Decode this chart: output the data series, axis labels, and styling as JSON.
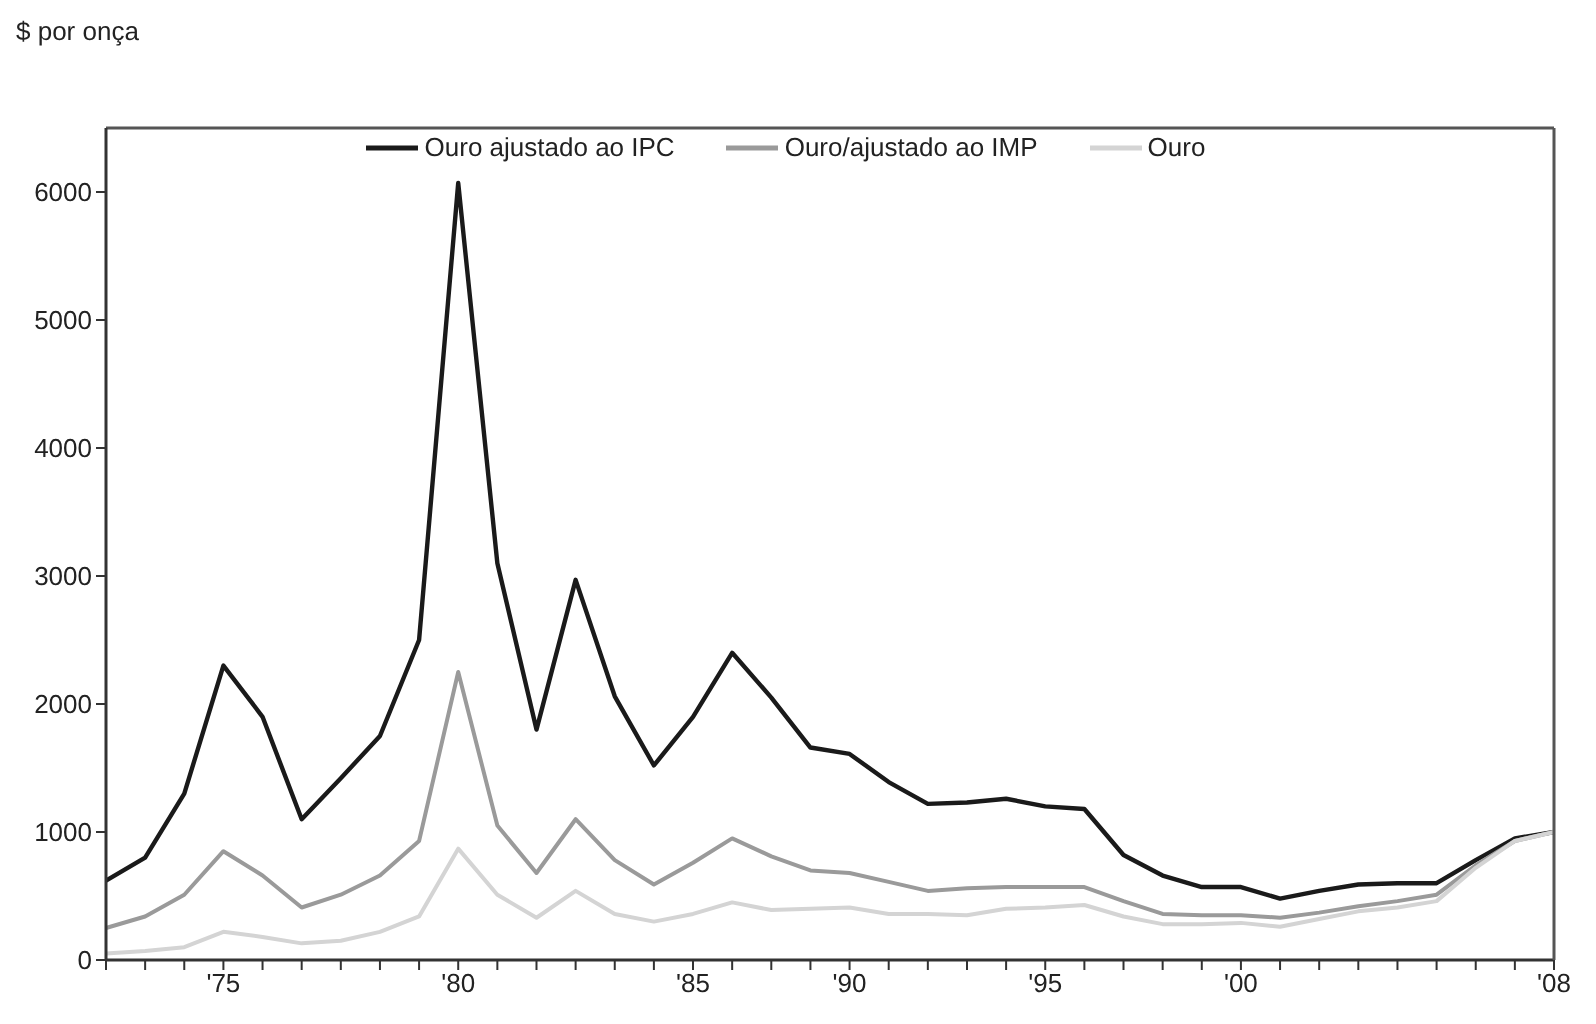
{
  "chart_data": {
    "type": "line",
    "ylabel": "$ por onça",
    "categories": [
      null,
      null,
      null,
      "'75",
      null,
      null,
      null,
      null,
      null,
      "'80",
      null,
      null,
      null,
      null,
      null,
      "'85",
      null,
      null,
      null,
      "'90",
      null,
      null,
      null,
      null,
      "'95",
      null,
      null,
      null,
      null,
      "'00",
      null,
      null,
      null,
      null,
      null,
      null,
      null,
      "'08"
    ],
    "series": [
      {
        "name": "Ouro ajustado ao IPC",
        "color": "#1a1a1a",
        "values": [
          620,
          800,
          1300,
          2300,
          1900,
          1100,
          1420,
          1750,
          2500,
          6070,
          3100,
          1800,
          2970,
          2060,
          1520,
          1900,
          2400,
          2050,
          1660,
          1610,
          1390,
          1220,
          1230,
          1260,
          1200,
          1180,
          820,
          660,
          570,
          570,
          480,
          540,
          590,
          600,
          600,
          780,
          950,
          1000
        ]
      },
      {
        "name": "Ouro/ajustado ao IMP",
        "color": "#9a9a9a",
        "values": [
          250,
          340,
          510,
          850,
          660,
          410,
          510,
          660,
          930,
          2250,
          1050,
          680,
          1100,
          780,
          590,
          760,
          950,
          810,
          700,
          680,
          610,
          540,
          560,
          570,
          570,
          570,
          460,
          360,
          350,
          350,
          330,
          370,
          420,
          460,
          510,
          740,
          930,
          1000
        ]
      },
      {
        "name": "Ouro",
        "color": "#d4d4d4",
        "values": [
          50,
          70,
          100,
          220,
          180,
          130,
          150,
          220,
          340,
          870,
          510,
          330,
          540,
          360,
          300,
          360,
          450,
          390,
          400,
          410,
          360,
          360,
          350,
          400,
          410,
          430,
          340,
          280,
          280,
          290,
          260,
          320,
          380,
          410,
          460,
          720,
          930,
          1000
        ]
      }
    ],
    "ylim": [
      0,
      6500
    ],
    "yticks": [
      0,
      1000,
      2000,
      3000,
      4000,
      5000,
      6000
    ],
    "legend": "top",
    "grid": false,
    "marker": "none",
    "line_style": "solid"
  }
}
